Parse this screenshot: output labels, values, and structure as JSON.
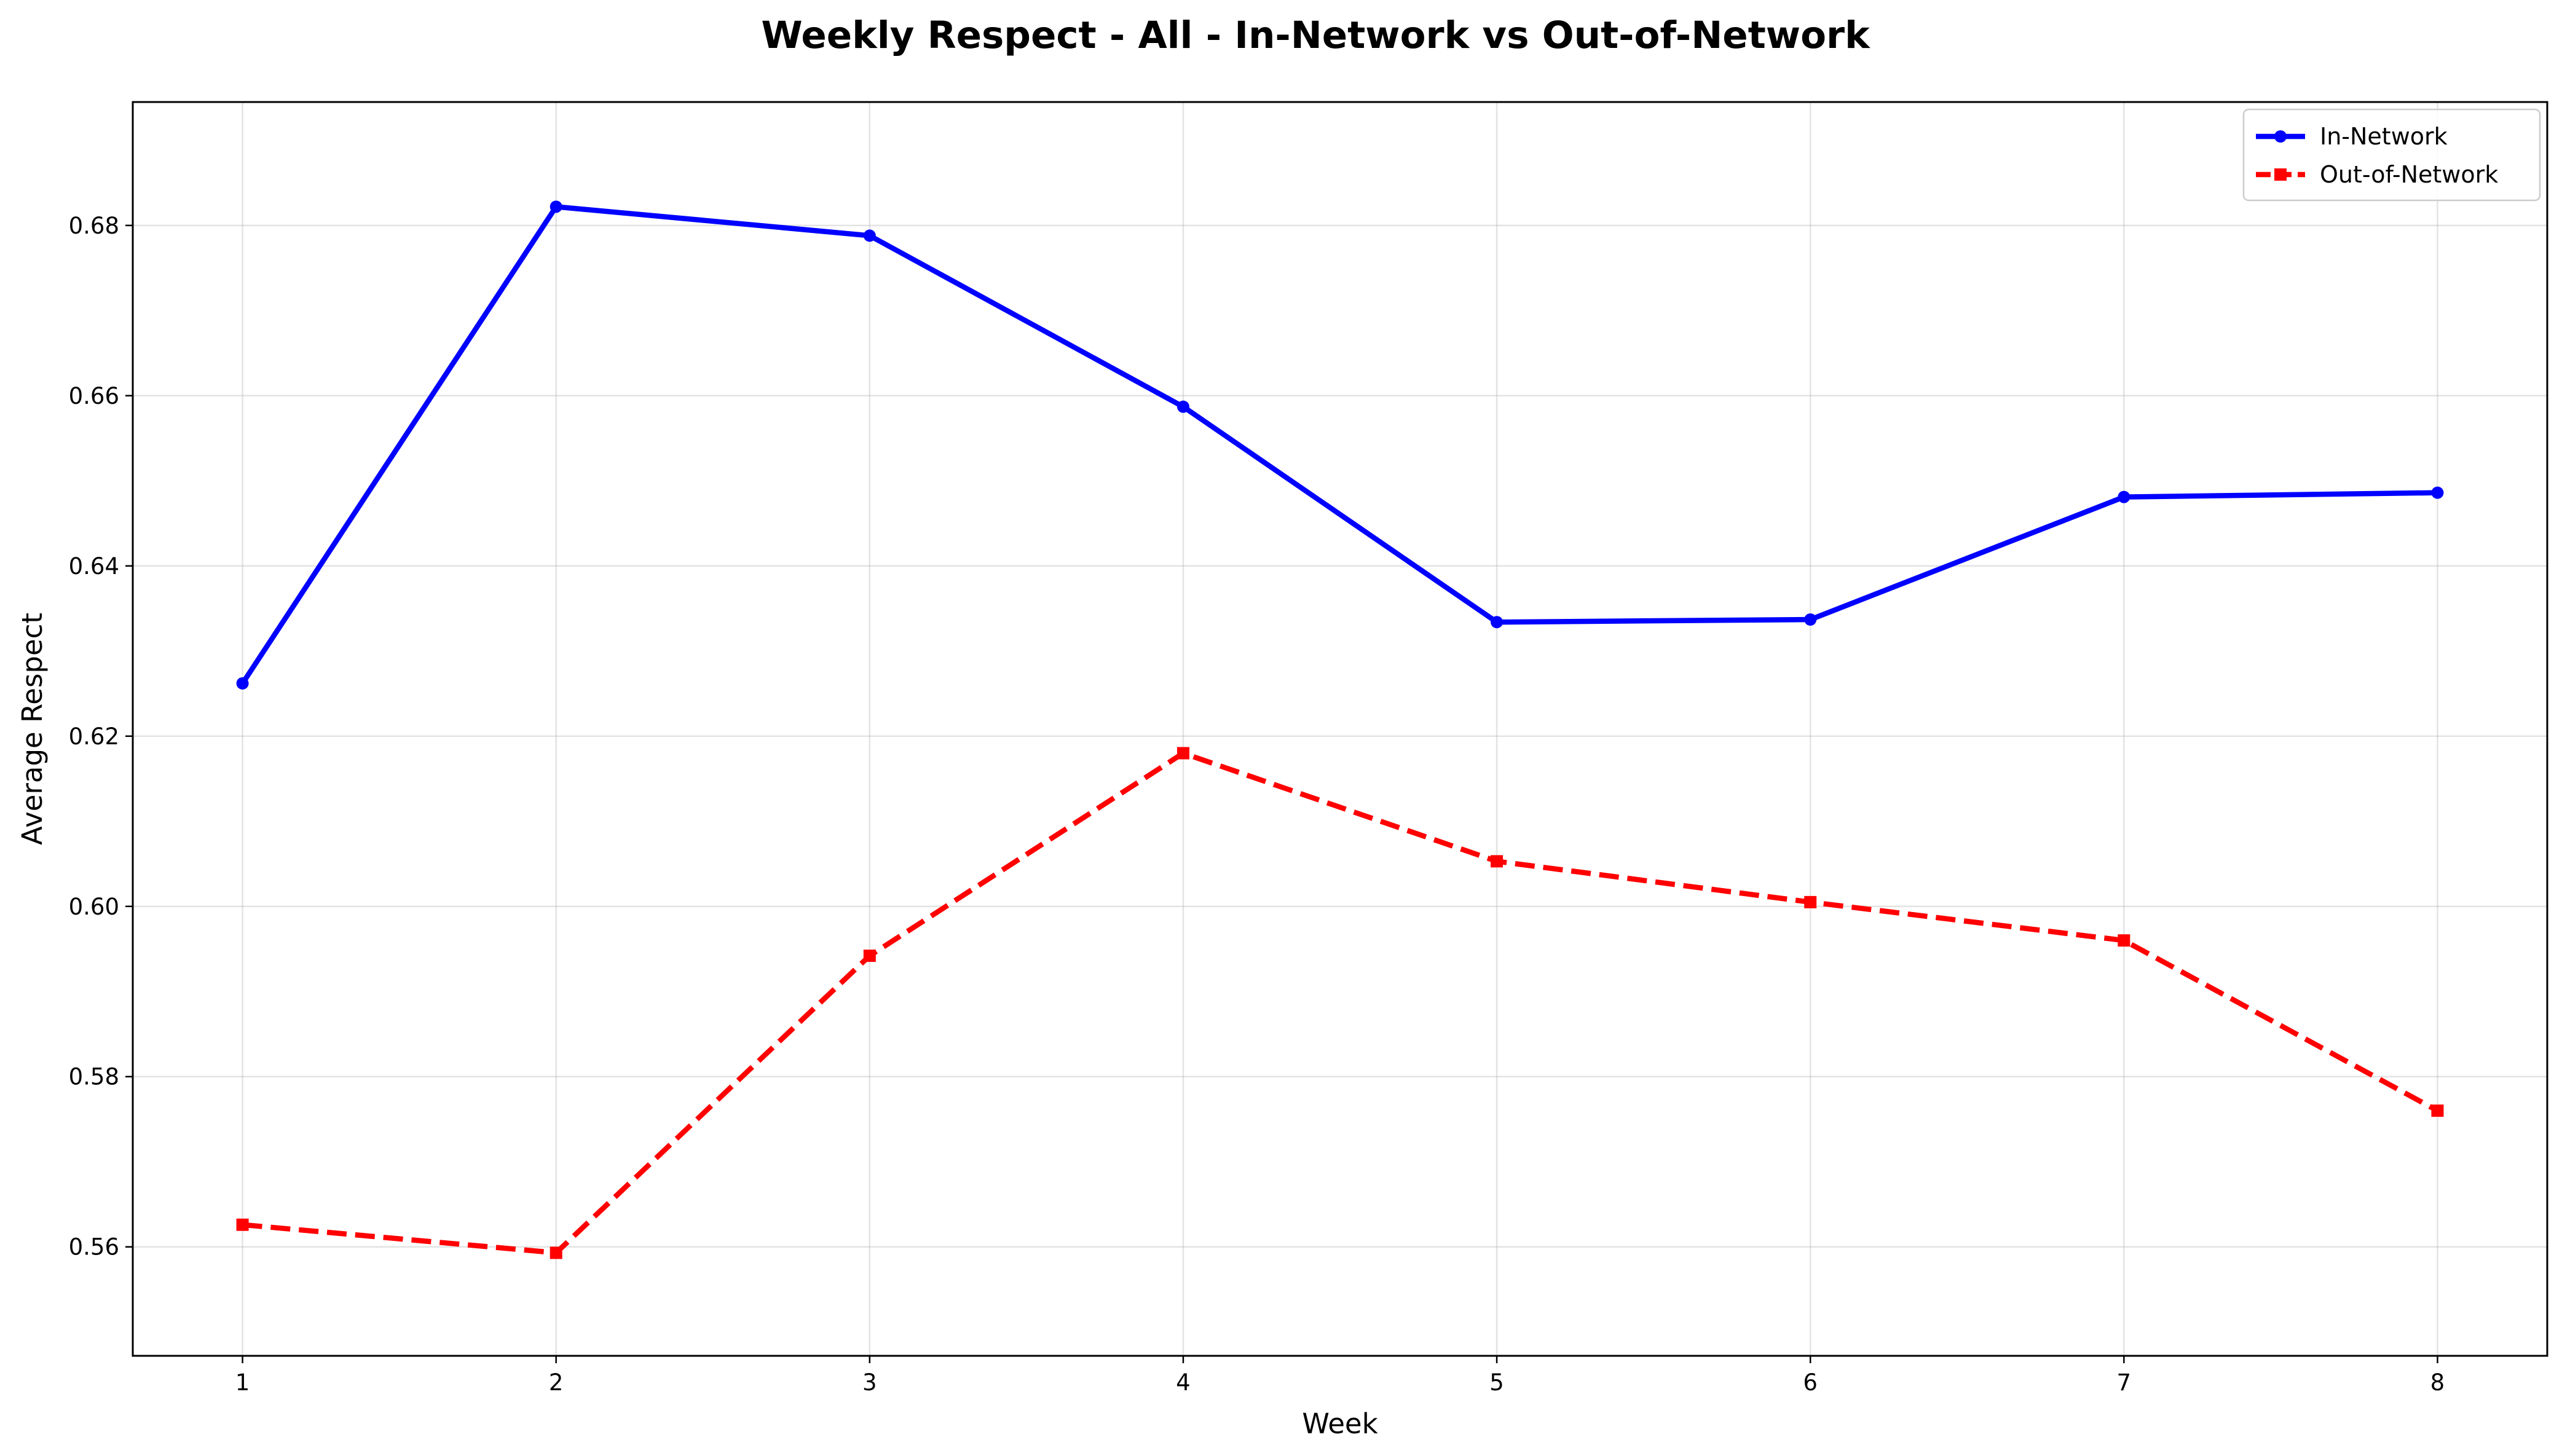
{
  "chart_data": {
    "type": "line",
    "title": "Weekly Respect - All - In-Network vs Out-of-Network",
    "xlabel": "Week",
    "ylabel": "Average Respect",
    "x": [
      1,
      2,
      3,
      4,
      5,
      6,
      7,
      8
    ],
    "xlim": [
      0.65,
      8.35
    ],
    "ylim": [
      0.5472,
      0.6945
    ],
    "yticks": [
      0.56,
      0.58,
      0.6,
      0.62,
      0.64,
      0.66,
      0.68
    ],
    "ytick_labels": [
      "0.56",
      "0.58",
      "0.60",
      "0.62",
      "0.64",
      "0.66",
      "0.68"
    ],
    "xtick_labels": [
      "1",
      "2",
      "3",
      "4",
      "5",
      "6",
      "7",
      "8"
    ],
    "grid": true,
    "legend_position": "top-right",
    "series": [
      {
        "name": "In-Network",
        "values": [
          0.6262,
          0.6822,
          0.6788,
          0.6587,
          0.6334,
          0.6337,
          0.6481,
          0.6486
        ],
        "color": "#0000ff",
        "line_style": "solid",
        "marker": "circle"
      },
      {
        "name": "Out-of-Network",
        "values": [
          0.5626,
          0.5593,
          0.5942,
          0.618,
          0.6053,
          0.6005,
          0.596,
          0.576
        ],
        "color": "#ff0000",
        "line_style": "dashed",
        "marker": "square"
      }
    ]
  }
}
